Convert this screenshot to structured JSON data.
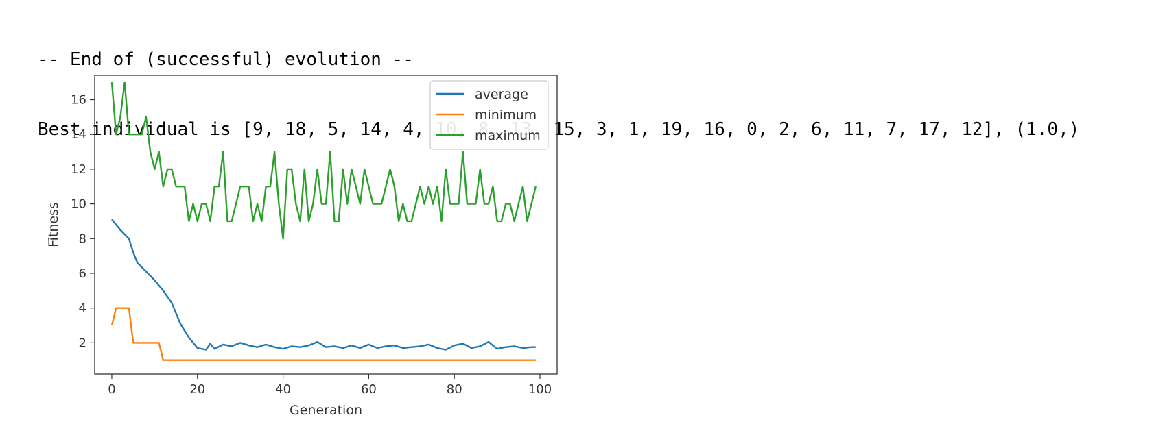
{
  "console": {
    "line1": "-- End of (successful) evolution --",
    "line2": "Best individual is [9, 18, 5, 14, 4, 10, 8, 13, 15, 3, 1, 19, 16, 0, 2, 6, 11, 7, 17, 12], (1.0,)"
  },
  "chart_data": {
    "type": "line",
    "xlabel": "Generation",
    "ylabel": "Fitness",
    "xlim": [
      -4,
      104
    ],
    "ylim": [
      0.2,
      17.4
    ],
    "xticks": [
      0,
      20,
      40,
      60,
      80,
      100
    ],
    "yticks": [
      2,
      4,
      6,
      8,
      10,
      12,
      14,
      16
    ],
    "grid": false,
    "legend_position": "top-right",
    "colors": {
      "average": "#1f77b4",
      "minimum": "#ff7f0e",
      "maximum": "#2ca02c"
    },
    "series": [
      {
        "name": "average",
        "x": [
          0,
          2,
          4,
          5,
          6,
          8,
          10,
          12,
          14,
          16,
          18,
          20,
          21,
          22,
          23,
          24,
          26,
          28,
          30,
          32,
          34,
          36,
          38,
          40,
          42,
          44,
          46,
          48,
          50,
          52,
          54,
          56,
          58,
          60,
          62,
          64,
          66,
          68,
          70,
          72,
          74,
          76,
          78,
          80,
          82,
          84,
          86,
          88,
          90,
          92,
          94,
          96,
          98,
          99
        ],
        "y": [
          9.1,
          8.5,
          8.0,
          7.2,
          6.6,
          6.1,
          5.6,
          5.0,
          4.3,
          3.1,
          2.3,
          1.7,
          1.65,
          1.6,
          1.95,
          1.65,
          1.9,
          1.8,
          2.0,
          1.85,
          1.75,
          1.9,
          1.75,
          1.65,
          1.8,
          1.75,
          1.85,
          2.05,
          1.75,
          1.8,
          1.7,
          1.85,
          1.7,
          1.9,
          1.7,
          1.8,
          1.85,
          1.7,
          1.75,
          1.8,
          1.9,
          1.7,
          1.6,
          1.85,
          1.95,
          1.7,
          1.8,
          2.05,
          1.65,
          1.75,
          1.8,
          1.7,
          1.75,
          1.75
        ]
      },
      {
        "name": "minimum",
        "x": [
          0,
          1,
          2,
          3,
          4,
          5,
          6,
          7,
          8,
          9,
          10,
          11,
          12,
          99
        ],
        "y": [
          3,
          4,
          4,
          4,
          4,
          2,
          2,
          2,
          2,
          2,
          2,
          2,
          1,
          1
        ]
      },
      {
        "name": "maximum",
        "x": [
          0,
          1,
          2,
          3,
          4,
          5,
          6,
          7,
          8,
          9,
          10,
          11,
          12,
          13,
          14,
          15,
          16,
          17,
          18,
          19,
          20,
          21,
          22,
          23,
          24,
          25,
          26,
          27,
          28,
          29,
          30,
          31,
          32,
          33,
          34,
          35,
          36,
          37,
          38,
          39,
          40,
          41,
          42,
          43,
          44,
          45,
          46,
          47,
          48,
          49,
          50,
          51,
          52,
          53,
          54,
          55,
          56,
          57,
          58,
          59,
          60,
          61,
          62,
          63,
          64,
          65,
          66,
          67,
          68,
          69,
          70,
          71,
          72,
          73,
          74,
          75,
          76,
          77,
          78,
          79,
          80,
          81,
          82,
          83,
          84,
          85,
          86,
          87,
          88,
          89,
          90,
          91,
          92,
          93,
          94,
          95,
          96,
          97,
          98,
          99
        ],
        "y": [
          17,
          14,
          15,
          17,
          14,
          14,
          14,
          14,
          15,
          13,
          12,
          13,
          11,
          12,
          12,
          11,
          11,
          11,
          9,
          10,
          9,
          10,
          10,
          9,
          11,
          11,
          13,
          9,
          9,
          10,
          11,
          11,
          11,
          9,
          10,
          9,
          11,
          11,
          13,
          10,
          8,
          12,
          12,
          10,
          9,
          12,
          9,
          10,
          12,
          10,
          10,
          13,
          9,
          9,
          12,
          10,
          12,
          11,
          10,
          12,
          11,
          10,
          10,
          10,
          11,
          12,
          11,
          9,
          10,
          9,
          9,
          10,
          11,
          10,
          11,
          10,
          11,
          9,
          12,
          10,
          10,
          10,
          13,
          10,
          10,
          10,
          12,
          10,
          10,
          11,
          9,
          9,
          10,
          10,
          9,
          10,
          11,
          9,
          10,
          11
        ]
      }
    ]
  }
}
